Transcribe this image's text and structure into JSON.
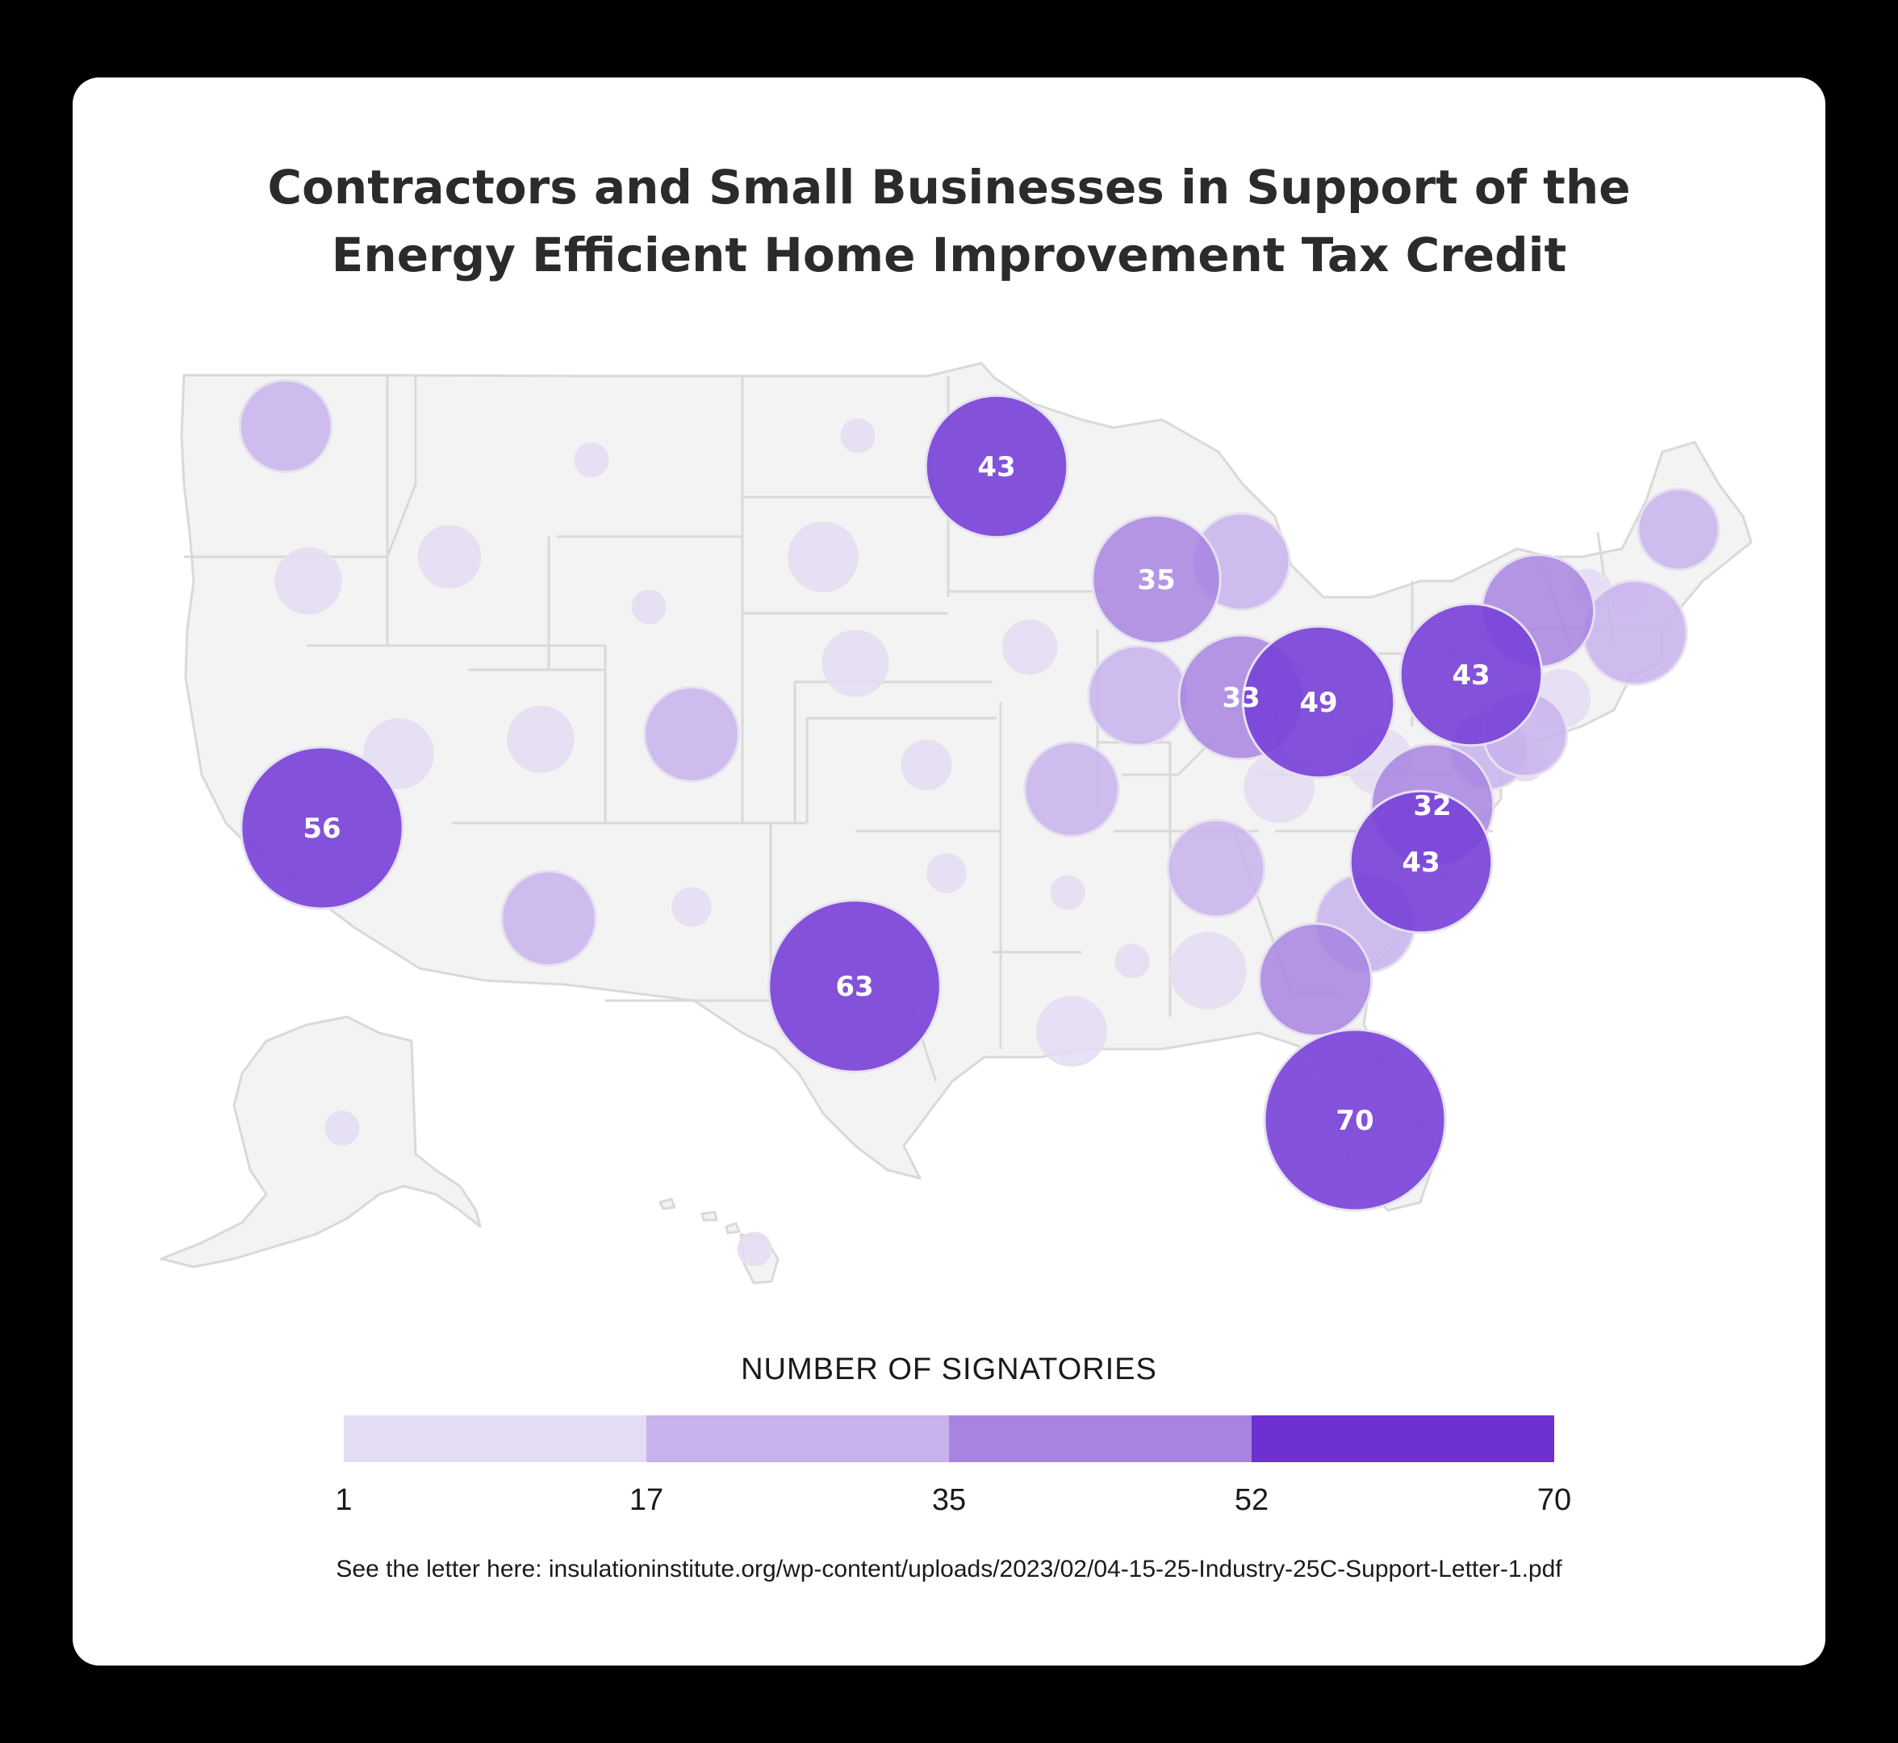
{
  "title": {
    "line1": "Contractors and Small Businesses in Support of the",
    "line2": "Energy Efficient Home Improvement Tax Credit"
  },
  "legend": {
    "title": "NUMBER OF SIGNATORIES",
    "ticks": [
      "1",
      "17",
      "35",
      "52",
      "70"
    ],
    "colors": [
      "#e4dcf5",
      "#c8b2ec",
      "#a784e1",
      "#6e30d0"
    ]
  },
  "source": "See the letter here: insulationinstitute.org/wp-content/uploads/2023/02/04-15-25-Industry-25C-Support-Letter-1.pdf",
  "colors": {
    "land": "#f3f3f3",
    "border": "#d9d9d9",
    "bubble_dark": "#7a43d8",
    "bubble_label": "#ffffff"
  },
  "chart_data": {
    "type": "bubble-map",
    "value_range": [
      1,
      70
    ],
    "bubbles": [
      {
        "state": "WA",
        "value": 18
      },
      {
        "state": "OR",
        "value": 9
      },
      {
        "state": "ID",
        "value": 8
      },
      {
        "state": "MT",
        "value": 2
      },
      {
        "state": "WY",
        "value": 2
      },
      {
        "state": "ND",
        "value": 2
      },
      {
        "state": "SD",
        "value": 10
      },
      {
        "state": "NE",
        "value": 9
      },
      {
        "state": "KS",
        "value": 5
      },
      {
        "state": "MN",
        "value": 43,
        "label": "43"
      },
      {
        "state": "IA",
        "value": 6
      },
      {
        "state": "WI",
        "value": 35,
        "label": "35"
      },
      {
        "state": "MI",
        "value": 20
      },
      {
        "state": "IL",
        "value": 21
      },
      {
        "state": "IN",
        "value": 33,
        "label": "33"
      },
      {
        "state": "OH",
        "value": 49,
        "label": "49"
      },
      {
        "state": "NV",
        "value": 10
      },
      {
        "state": "UT",
        "value": 9
      },
      {
        "state": "CO",
        "value": 19
      },
      {
        "state": "CA",
        "value": 56,
        "label": "56"
      },
      {
        "state": "AZ",
        "value": 19
      },
      {
        "state": "NM",
        "value": 3
      },
      {
        "state": "TX",
        "value": 63,
        "label": "63"
      },
      {
        "state": "OK",
        "value": 3
      },
      {
        "state": "MO",
        "value": 19
      },
      {
        "state": "AR",
        "value": 2
      },
      {
        "state": "LA",
        "value": 10
      },
      {
        "state": "MS",
        "value": 2
      },
      {
        "state": "AL",
        "value": 12
      },
      {
        "state": "TN",
        "value": 20
      },
      {
        "state": "KY",
        "value": 10
      },
      {
        "state": "GA",
        "value": 27
      },
      {
        "state": "FL",
        "value": 70,
        "label": "70"
      },
      {
        "state": "SC",
        "value": 21
      },
      {
        "state": "NC",
        "value": 43,
        "label": "43"
      },
      {
        "state": "VA",
        "value": 32,
        "label": "32"
      },
      {
        "state": "WV",
        "value": 9
      },
      {
        "state": "PA",
        "value": 43,
        "label": "43"
      },
      {
        "state": "NY",
        "value": 27
      },
      {
        "state": "NJ",
        "value": 15
      },
      {
        "state": "MD",
        "value": 13
      },
      {
        "state": "DE",
        "value": 3
      },
      {
        "state": "CT",
        "value": 7
      },
      {
        "state": "RI",
        "value": 2
      },
      {
        "state": "MA",
        "value": 23
      },
      {
        "state": "VT",
        "value": 2
      },
      {
        "state": "NH",
        "value": 2
      },
      {
        "state": "ME",
        "value": 14
      },
      {
        "state": "AK",
        "value": 2
      },
      {
        "state": "HI",
        "value": 2
      }
    ]
  }
}
